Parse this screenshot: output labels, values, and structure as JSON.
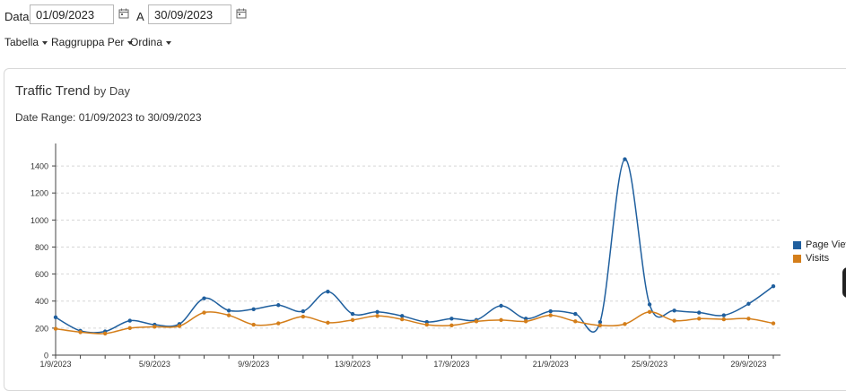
{
  "filter": {
    "date_label": "Data",
    "from_value": "01/09/2023",
    "to_label": "A",
    "to_value": "30/09/2023"
  },
  "menus": {
    "table": "Tabella",
    "group_by": "Raggruppa Per",
    "order": "Ordina"
  },
  "chart_header": {
    "title": "Traffic Trend",
    "subtitle": "by Day",
    "date_range": "Date Range: 01/09/2023 to 30/09/2023"
  },
  "chart_data": {
    "type": "line",
    "title": "Traffic Trend by Day",
    "xlabel": "",
    "ylabel": "",
    "ylim": [
      0,
      1500
    ],
    "yticks": [
      0,
      200,
      400,
      600,
      800,
      1000,
      1200,
      1400
    ],
    "grid": true,
    "legend": "right",
    "x": [
      "1/9/2023",
      "2/9/2023",
      "3/9/2023",
      "4/9/2023",
      "5/9/2023",
      "6/9/2023",
      "7/9/2023",
      "8/9/2023",
      "9/9/2023",
      "10/9/2023",
      "11/9/2023",
      "12/9/2023",
      "13/9/2023",
      "14/9/2023",
      "15/9/2023",
      "16/9/2023",
      "17/9/2023",
      "18/9/2023",
      "19/9/2023",
      "20/9/2023",
      "21/9/2023",
      "22/9/2023",
      "23/9/2023",
      "24/9/2023",
      "25/9/2023",
      "26/9/2023",
      "27/9/2023",
      "28/9/2023",
      "29/9/2023",
      "30/9/2023"
    ],
    "xtick_labels": [
      "1/9/2023",
      "5/9/2023",
      "9/9/2023",
      "13/9/2023",
      "17/9/2023",
      "21/9/2023",
      "25/9/2023",
      "29/9/2023"
    ],
    "series": [
      {
        "name": "Page Views",
        "color": "#1f5f9e",
        "values": [
          280,
          180,
          175,
          255,
          225,
          230,
          420,
          330,
          340,
          370,
          325,
          470,
          305,
          320,
          290,
          245,
          270,
          260,
          365,
          270,
          325,
          305,
          245,
          1450,
          375,
          330,
          315,
          295,
          380,
          510
        ]
      },
      {
        "name": "Visits",
        "color": "#d47e1a",
        "values": [
          195,
          170,
          160,
          200,
          210,
          215,
          315,
          295,
          225,
          235,
          285,
          240,
          260,
          290,
          265,
          225,
          220,
          250,
          260,
          250,
          295,
          250,
          220,
          230,
          320,
          255,
          270,
          265,
          270,
          235
        ]
      }
    ]
  }
}
